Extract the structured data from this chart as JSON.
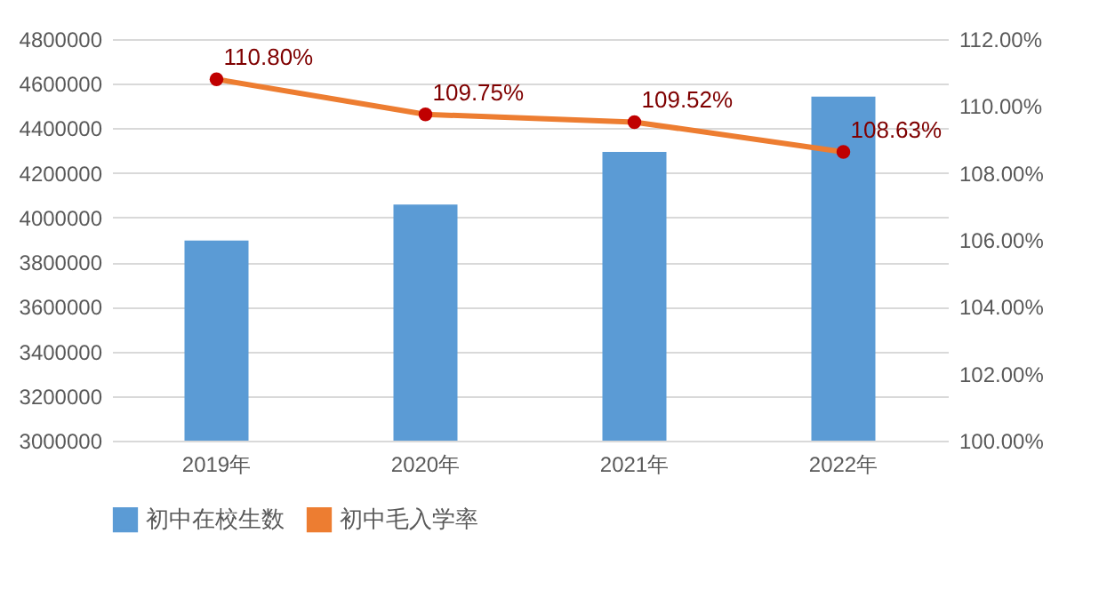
{
  "chart_data": {
    "type": "bar",
    "categories": [
      "2019年",
      "2020年",
      "2021年",
      "2022年"
    ],
    "series": [
      {
        "name": "初中在校生数",
        "color": "#5b9bd5",
        "values": [
          3897000,
          4058000,
          4294000,
          4542000
        ]
      },
      {
        "name": "初中毛入学率",
        "type": "line",
        "axis": "y2",
        "color": "#ed7d31",
        "values": [
          110.8,
          109.75,
          109.52,
          108.63
        ],
        "value_labels": [
          "110.80%",
          "109.75%",
          "109.52%",
          "108.63%"
        ]
      }
    ],
    "ylim": [
      3000000,
      4800000
    ],
    "yticks": [
      3000000,
      3200000,
      3400000,
      3600000,
      3800000,
      4000000,
      4200000,
      4400000,
      4600000,
      4800000
    ],
    "y2lim": [
      100,
      112
    ],
    "y2ticks": [
      {
        "value": 100,
        "label": "100.00%"
      },
      {
        "value": 102,
        "label": "102.00%"
      },
      {
        "value": 104,
        "label": "104.00%"
      },
      {
        "value": 106,
        "label": "106.00%"
      },
      {
        "value": 108,
        "label": "108.00%"
      },
      {
        "value": 110,
        "label": "110.00%"
      },
      {
        "value": 112,
        "label": "112.00%"
      }
    ],
    "grid": "y",
    "legend": "bottom",
    "marker": "circle"
  }
}
